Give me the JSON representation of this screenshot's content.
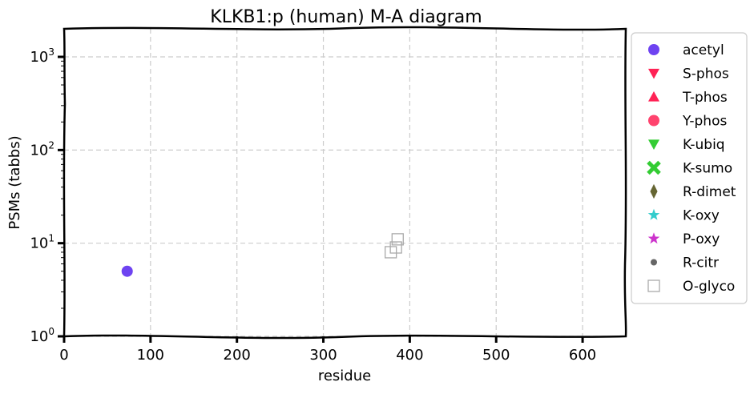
{
  "chart_data": {
    "type": "scatter",
    "title": "KLKB1:p (human) M-A diagram",
    "xlabel": "residue",
    "ylabel": "PSMs (tabbs)",
    "xlim": [
      0,
      650
    ],
    "ylim": [
      1,
      2000
    ],
    "yscale": "log",
    "grid": true,
    "legend_position": "outside right",
    "x_ticks": [
      0,
      100,
      200,
      300,
      400,
      500,
      600
    ],
    "x_tick_labels": [
      "0",
      "100",
      "200",
      "300",
      "400",
      "500",
      "600"
    ],
    "y_ticks": [
      1,
      10,
      100,
      1000
    ],
    "y_tick_labels": [
      {
        "base": "10",
        "exp": "0"
      },
      {
        "base": "10",
        "exp": "1"
      },
      {
        "base": "10",
        "exp": "2"
      },
      {
        "base": "10",
        "exp": "3"
      }
    ],
    "series": [
      {
        "name": "acetyl",
        "marker": "circle",
        "color": "#5522ee",
        "points": [
          {
            "x": 73,
            "y": 5
          }
        ]
      },
      {
        "name": "S-phos",
        "marker": "triangle-down",
        "color": "#ff2255",
        "points": []
      },
      {
        "name": "T-phos",
        "marker": "triangle-up",
        "color": "#ff2255",
        "points": []
      },
      {
        "name": "Y-phos",
        "marker": "circle",
        "color": "#ff2255",
        "points": []
      },
      {
        "name": "K-ubiq",
        "marker": "triangle-down",
        "color": "#33cc33",
        "points": []
      },
      {
        "name": "K-sumo",
        "marker": "x-filled",
        "color": "#33cc33",
        "points": []
      },
      {
        "name": "R-dimet",
        "marker": "diamond",
        "color": "#666633",
        "points": []
      },
      {
        "name": "K-oxy",
        "marker": "star",
        "color": "#33cccc",
        "points": []
      },
      {
        "name": "P-oxy",
        "marker": "star",
        "color": "#cc33cc",
        "points": []
      },
      {
        "name": "R-citr",
        "marker": "small-circle",
        "color": "#666666",
        "points": []
      },
      {
        "name": "O-glyco",
        "marker": "square-open",
        "color": "#aaaaaa",
        "points": [
          {
            "x": 378,
            "y": 8
          },
          {
            "x": 384,
            "y": 9
          },
          {
            "x": 386,
            "y": 11
          }
        ]
      }
    ]
  }
}
